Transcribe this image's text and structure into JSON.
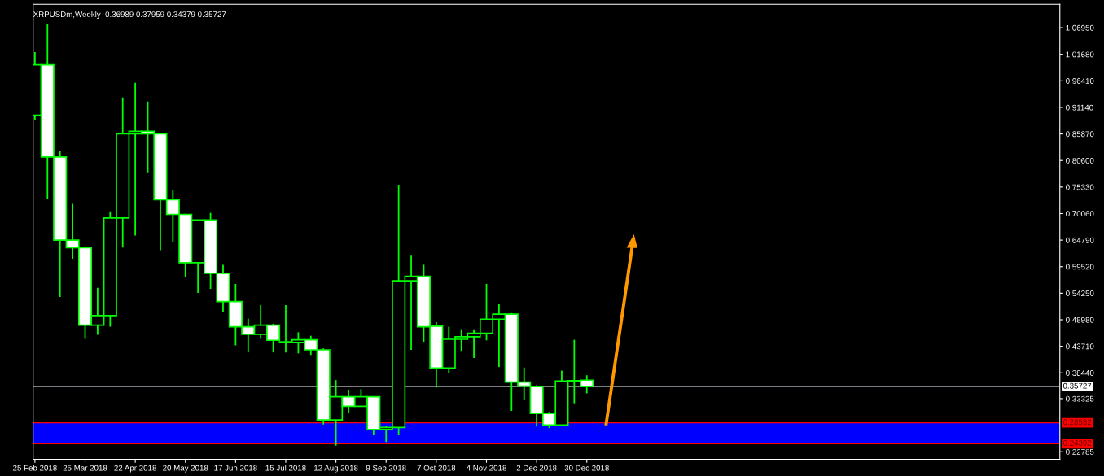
{
  "chart_data": {
    "type": "candlestick",
    "title": "XRPUSDm,Weekly  0.36989 0.37959 0.34379 0.35727",
    "color": "#00ff00",
    "x": [
      "2018-02-25",
      "2018-03-04",
      "2018-03-11",
      "2018-03-18",
      "2018-03-25",
      "2018-04-01",
      "2018-04-08",
      "2018-04-15",
      "2018-04-22",
      "2018-04-29",
      "2018-05-06",
      "2018-05-13",
      "2018-05-20",
      "2018-05-27",
      "2018-06-03",
      "2018-06-10",
      "2018-06-17",
      "2018-06-24",
      "2018-07-01",
      "2018-07-08",
      "2018-07-15",
      "2018-07-22",
      "2018-07-29",
      "2018-08-05",
      "2018-08-12",
      "2018-08-19",
      "2018-08-26",
      "2018-09-02",
      "2018-09-09",
      "2018-09-16",
      "2018-09-23",
      "2018-09-30",
      "2018-10-07",
      "2018-10-14",
      "2018-10-21",
      "2018-10-28",
      "2018-11-04",
      "2018-11-11",
      "2018-11-18",
      "2018-11-25",
      "2018-12-02",
      "2018-12-09",
      "2018-12-16",
      "2018-12-23",
      "2018-12-30"
    ],
    "ohlc": [
      [
        0.896,
        1.021,
        0.887,
        0.996
      ],
      [
        0.996,
        1.076,
        0.729,
        0.813
      ],
      [
        0.813,
        0.824,
        0.535,
        0.648
      ],
      [
        0.648,
        0.72,
        0.611,
        0.633
      ],
      [
        0.633,
        0.636,
        0.452,
        0.479
      ],
      [
        0.479,
        0.553,
        0.46,
        0.498
      ],
      [
        0.498,
        0.705,
        0.476,
        0.692
      ],
      [
        0.692,
        0.931,
        0.633,
        0.859
      ],
      [
        0.859,
        0.96,
        0.657,
        0.864
      ],
      [
        0.864,
        0.923,
        0.781,
        0.859
      ],
      [
        0.859,
        0.861,
        0.628,
        0.728
      ],
      [
        0.728,
        0.747,
        0.644,
        0.699
      ],
      [
        0.699,
        0.7,
        0.574,
        0.603
      ],
      [
        0.603,
        0.688,
        0.543,
        0.688
      ],
      [
        0.688,
        0.702,
        0.551,
        0.582
      ],
      [
        0.582,
        0.599,
        0.505,
        0.526
      ],
      [
        0.526,
        0.561,
        0.439,
        0.476
      ],
      [
        0.476,
        0.492,
        0.425,
        0.461
      ],
      [
        0.461,
        0.519,
        0.452,
        0.479
      ],
      [
        0.479,
        0.482,
        0.425,
        0.449
      ],
      [
        0.446,
        0.519,
        0.425,
        0.445
      ],
      [
        0.445,
        0.465,
        0.423,
        0.45
      ],
      [
        0.45,
        0.458,
        0.42,
        0.43
      ],
      [
        0.43,
        0.433,
        0.282,
        0.291
      ],
      [
        0.291,
        0.37,
        0.24,
        0.337
      ],
      [
        0.337,
        0.351,
        0.305,
        0.318
      ],
      [
        0.318,
        0.352,
        0.318,
        0.337
      ],
      [
        0.337,
        0.338,
        0.261,
        0.272
      ],
      [
        0.272,
        0.28,
        0.247,
        0.276
      ],
      [
        0.276,
        0.758,
        0.261,
        0.567
      ],
      [
        0.567,
        0.617,
        0.43,
        0.576
      ],
      [
        0.576,
        0.599,
        0.446,
        0.476
      ],
      [
        0.477,
        0.485,
        0.355,
        0.394
      ],
      [
        0.394,
        0.476,
        0.383,
        0.451
      ],
      [
        0.451,
        0.471,
        0.428,
        0.456
      ],
      [
        0.456,
        0.471,
        0.414,
        0.463
      ],
      [
        0.463,
        0.561,
        0.449,
        0.491
      ],
      [
        0.491,
        0.521,
        0.396,
        0.501
      ],
      [
        0.501,
        0.503,
        0.309,
        0.366
      ],
      [
        0.366,
        0.395,
        0.33,
        0.358
      ],
      [
        0.357,
        0.36,
        0.278,
        0.304
      ],
      [
        0.304,
        0.307,
        0.275,
        0.281
      ],
      [
        0.281,
        0.389,
        0.28,
        0.368
      ],
      [
        0.368,
        0.45,
        0.324,
        0.369
      ],
      [
        0.36989,
        0.37959,
        0.34379,
        0.35727
      ]
    ],
    "xlim": [
      "2018-02-24",
      "2019-09-20"
    ],
    "xticks": [
      {
        "value": "2018-02-25",
        "label": "25 Feb 2018"
      },
      {
        "value": "2018-03-25",
        "label": "25 Mar 2018"
      },
      {
        "value": "2018-04-22",
        "label": "22 Apr 2018"
      },
      {
        "value": "2018-05-20",
        "label": "20 May 2018"
      },
      {
        "value": "2018-06-17",
        "label": "17 Jun 2018"
      },
      {
        "value": "2018-07-15",
        "label": "15 Jul 2018"
      },
      {
        "value": "2018-08-12",
        "label": "12 Aug 2018"
      },
      {
        "value": "2018-09-09",
        "label": "9 Sep 2018"
      },
      {
        "value": "2018-10-07",
        "label": "7 Oct 2018"
      },
      {
        "value": "2018-11-04",
        "label": "4 Nov 2018"
      },
      {
        "value": "2018-12-02",
        "label": "2 Dec 2018"
      },
      {
        "value": "2018-12-30",
        "label": "30 Dec 2018"
      }
    ],
    "ylim": [
      0.2128,
      1.116
    ],
    "yticks": [
      {
        "value": 1.0695,
        "label": "1.06950"
      },
      {
        "value": 1.0168,
        "label": "1.01680"
      },
      {
        "value": 0.9641,
        "label": "0.96410"
      },
      {
        "value": 0.9114,
        "label": "0.91140"
      },
      {
        "value": 0.8587,
        "label": "0.85870"
      },
      {
        "value": 0.806,
        "label": "0.80600"
      },
      {
        "value": 0.7533,
        "label": "0.75330"
      },
      {
        "value": 0.7006,
        "label": "0.70060"
      },
      {
        "value": 0.6479,
        "label": "0.64790"
      },
      {
        "value": 0.5952,
        "label": "0.59520"
      },
      {
        "value": 0.5425,
        "label": "0.54250"
      },
      {
        "value": 0.4898,
        "label": "0.48980"
      },
      {
        "value": 0.4371,
        "label": "0.43710"
      },
      {
        "value": 0.3844,
        "label": "0.38440"
      },
      {
        "value": 0.33325,
        "label": "0.33325"
      },
      {
        "value": 0.22785,
        "label": "0.22785"
      }
    ],
    "ref_lines": [
      {
        "axis": "y",
        "value": 0.35727,
        "label": "0.35727",
        "color": "#a0a8b0"
      },
      {
        "axis": "y",
        "value": 0.28532,
        "label": "0.28532",
        "color": "#ff0000"
      },
      {
        "axis": "y",
        "value": 0.24392,
        "label": "0.24392",
        "color": "#ff0000"
      }
    ],
    "bands": [
      {
        "axis": "y",
        "from": 0.24392,
        "to": 0.28532,
        "color": "#0000ff"
      }
    ],
    "grid": false
  }
}
